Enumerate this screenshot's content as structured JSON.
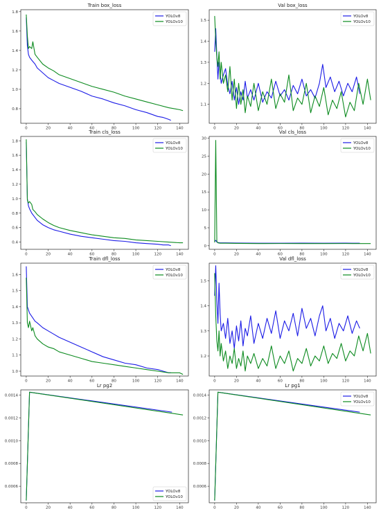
{
  "figure": {
    "rows": 4,
    "cols": 2
  },
  "colors": {
    "YOLOv8": "#1a1ae6",
    "YOLOv10": "#0b8a1e"
  },
  "chart_data": [
    {
      "type": "line",
      "title": "Train box_loss",
      "xlim": [
        -5,
        148
      ],
      "ylim": [
        0.65,
        1.82
      ],
      "xticks": [
        0,
        20,
        40,
        60,
        80,
        100,
        120,
        140
      ],
      "yticks": [
        0.8,
        1.0,
        1.2,
        1.4,
        1.6,
        1.8
      ],
      "ytick_labels": [
        "0.8",
        "1.0",
        "1.2",
        "1.4",
        "1.6",
        "1.8"
      ],
      "legend": "top-right",
      "series": [
        {
          "name": "YOLOv8",
          "x": [
            0,
            1,
            2,
            3,
            5,
            8,
            10,
            15,
            20,
            25,
            30,
            40,
            50,
            60,
            70,
            80,
            90,
            100,
            110,
            120,
            125,
            130,
            132
          ],
          "y": [
            1.74,
            1.45,
            1.36,
            1.33,
            1.3,
            1.26,
            1.22,
            1.17,
            1.12,
            1.09,
            1.06,
            1.02,
            0.98,
            0.93,
            0.9,
            0.86,
            0.83,
            0.79,
            0.76,
            0.72,
            0.71,
            0.69,
            0.68
          ]
        },
        {
          "name": "YOLOv10",
          "x": [
            0,
            1,
            2,
            3,
            5,
            6,
            8,
            10,
            15,
            20,
            25,
            30,
            40,
            50,
            60,
            70,
            80,
            90,
            100,
            110,
            120,
            130,
            140,
            143
          ],
          "y": [
            1.77,
            1.55,
            1.42,
            1.44,
            1.42,
            1.49,
            1.36,
            1.33,
            1.26,
            1.22,
            1.19,
            1.15,
            1.11,
            1.07,
            1.03,
            1.0,
            0.97,
            0.93,
            0.9,
            0.87,
            0.84,
            0.81,
            0.79,
            0.78
          ]
        }
      ]
    },
    {
      "type": "line",
      "title": "Val box_loss",
      "xlim": [
        -5,
        148
      ],
      "ylim": [
        1.01,
        1.55
      ],
      "xticks": [
        0,
        20,
        40,
        60,
        80,
        100,
        120,
        140
      ],
      "yticks": [
        1.1,
        1.2,
        1.3,
        1.4,
        1.5
      ],
      "ytick_labels": [
        "1.1",
        "1.2",
        "1.3",
        "1.4",
        "1.5"
      ],
      "legend": "top-right",
      "series": [
        {
          "name": "YOLOv8",
          "x": [
            0,
            1,
            2,
            3,
            4,
            5,
            6,
            8,
            10,
            12,
            14,
            16,
            18,
            20,
            22,
            24,
            26,
            28,
            30,
            33,
            36,
            40,
            44,
            48,
            52,
            56,
            60,
            64,
            68,
            72,
            76,
            80,
            84,
            88,
            92,
            96,
            99,
            102,
            106,
            110,
            114,
            118,
            122,
            126,
            130,
            133
          ],
          "y": [
            1.35,
            1.46,
            1.33,
            1.22,
            1.3,
            1.25,
            1.2,
            1.24,
            1.27,
            1.19,
            1.15,
            1.21,
            1.12,
            1.18,
            1.1,
            1.16,
            1.12,
            1.21,
            1.13,
            1.17,
            1.12,
            1.2,
            1.11,
            1.16,
            1.13,
            1.21,
            1.14,
            1.17,
            1.12,
            1.19,
            1.15,
            1.22,
            1.14,
            1.17,
            1.13,
            1.2,
            1.29,
            1.18,
            1.23,
            1.16,
            1.21,
            1.14,
            1.2,
            1.16,
            1.23,
            1.15
          ]
        },
        {
          "name": "YOLOv10",
          "x": [
            0,
            1,
            2,
            3,
            4,
            5,
            6,
            8,
            10,
            12,
            14,
            16,
            18,
            20,
            22,
            24,
            26,
            28,
            30,
            33,
            36,
            40,
            44,
            48,
            52,
            56,
            60,
            64,
            68,
            72,
            76,
            80,
            84,
            88,
            92,
            96,
            100,
            104,
            108,
            112,
            116,
            120,
            124,
            128,
            132,
            136,
            140,
            143
          ],
          "y": [
            1.52,
            1.4,
            1.32,
            1.28,
            1.35,
            1.22,
            1.3,
            1.2,
            1.24,
            1.16,
            1.28,
            1.12,
            1.22,
            1.08,
            1.2,
            1.1,
            1.17,
            1.06,
            1.14,
            1.09,
            1.2,
            1.07,
            1.16,
            1.1,
            1.22,
            1.08,
            1.15,
            1.11,
            1.24,
            1.07,
            1.13,
            1.1,
            1.2,
            1.06,
            1.14,
            1.09,
            1.18,
            1.05,
            1.12,
            1.08,
            1.16,
            1.04,
            1.11,
            1.07,
            1.2,
            1.1,
            1.22,
            1.12
          ]
        }
      ]
    },
    {
      "type": "line",
      "title": "Train cls_loss",
      "xlim": [
        -5,
        148
      ],
      "ylim": [
        0.3,
        1.86
      ],
      "xticks": [
        0,
        20,
        40,
        60,
        80,
        100,
        120,
        140
      ],
      "yticks": [
        0.4,
        0.6,
        0.8,
        1.0,
        1.2,
        1.4,
        1.6,
        1.8
      ],
      "ytick_labels": [
        "0.4",
        "0.6",
        "0.8",
        "1.0",
        "1.2",
        "1.4",
        "1.6",
        "1.8"
      ],
      "legend": "top-right",
      "series": [
        {
          "name": "YOLOv8",
          "x": [
            0,
            1,
            2,
            3,
            5,
            8,
            10,
            15,
            20,
            25,
            30,
            40,
            50,
            60,
            70,
            80,
            90,
            100,
            110,
            120,
            125,
            130,
            132
          ],
          "y": [
            1.78,
            1.0,
            0.9,
            0.86,
            0.8,
            0.74,
            0.7,
            0.64,
            0.6,
            0.57,
            0.55,
            0.51,
            0.48,
            0.46,
            0.44,
            0.42,
            0.41,
            0.39,
            0.38,
            0.37,
            0.36,
            0.36,
            0.35
          ]
        },
        {
          "name": "YOLOv10",
          "x": [
            0,
            1,
            2,
            3,
            5,
            6,
            8,
            10,
            15,
            20,
            25,
            30,
            40,
            50,
            60,
            70,
            80,
            90,
            100,
            110,
            120,
            130,
            140,
            143
          ],
          "y": [
            1.82,
            0.98,
            0.94,
            0.96,
            0.92,
            0.85,
            0.82,
            0.78,
            0.72,
            0.67,
            0.63,
            0.6,
            0.56,
            0.53,
            0.5,
            0.48,
            0.46,
            0.45,
            0.43,
            0.42,
            0.41,
            0.4,
            0.39,
            0.39
          ]
        }
      ]
    },
    {
      "type": "line",
      "title": "Val cls_loss",
      "xlim": [
        -5,
        148
      ],
      "ylim": [
        -1,
        30.5
      ],
      "xticks": [
        0,
        20,
        40,
        60,
        80,
        100,
        120,
        140
      ],
      "yticks": [
        0,
        5,
        10,
        15,
        20,
        25,
        30
      ],
      "ytick_labels": [
        "0",
        "5",
        "10",
        "15",
        "20",
        "25",
        "30"
      ],
      "legend": "top-right",
      "series": [
        {
          "name": "YOLOv8",
          "x": [
            0,
            1,
            2,
            3,
            5,
            10,
            20,
            40,
            60,
            80,
            100,
            120,
            133
          ],
          "y": [
            1.2,
            1.5,
            1.0,
            0.9,
            0.8,
            0.8,
            0.75,
            0.7,
            0.7,
            0.72,
            0.7,
            0.72,
            0.7
          ]
        },
        {
          "name": "YOLOv10",
          "x": [
            0,
            1,
            2,
            3,
            5,
            10,
            20,
            40,
            60,
            80,
            100,
            120,
            140,
            143
          ],
          "y": [
            0.9,
            29.4,
            1.2,
            0.8,
            0.7,
            0.7,
            0.65,
            0.6,
            0.62,
            0.6,
            0.6,
            0.62,
            0.6,
            0.6
          ]
        }
      ]
    },
    {
      "type": "line",
      "title": "Val dfl_loss",
      "xlim": [
        -5,
        148
      ],
      "ylim": [
        1.12,
        1.57
      ],
      "xticks": [
        0,
        20,
        40,
        60,
        80,
        100,
        120,
        140
      ],
      "yticks": [
        1.2,
        1.3,
        1.4,
        1.5
      ],
      "ytick_labels": [
        "1.2",
        "1.3",
        "1.4",
        "1.5"
      ],
      "legend": "top-right",
      "series": [
        {
          "name": "YOLOv8",
          "x": [
            0,
            1,
            2,
            3,
            4,
            5,
            6,
            8,
            10,
            12,
            14,
            16,
            18,
            20,
            22,
            24,
            26,
            28,
            30,
            33,
            36,
            40,
            44,
            48,
            52,
            56,
            60,
            64,
            68,
            72,
            76,
            80,
            84,
            88,
            92,
            96,
            99,
            102,
            106,
            110,
            114,
            118,
            122,
            126,
            130,
            133
          ],
          "y": [
            1.44,
            1.56,
            1.42,
            1.33,
            1.49,
            1.37,
            1.3,
            1.33,
            1.27,
            1.35,
            1.25,
            1.3,
            1.23,
            1.32,
            1.26,
            1.34,
            1.24,
            1.31,
            1.28,
            1.36,
            1.25,
            1.33,
            1.27,
            1.35,
            1.29,
            1.38,
            1.27,
            1.34,
            1.3,
            1.37,
            1.28,
            1.39,
            1.31,
            1.35,
            1.28,
            1.36,
            1.4,
            1.3,
            1.35,
            1.27,
            1.33,
            1.3,
            1.36,
            1.29,
            1.34,
            1.31
          ]
        },
        {
          "name": "YOLOv10",
          "x": [
            0,
            1,
            2,
            3,
            4,
            5,
            6,
            8,
            10,
            12,
            14,
            16,
            18,
            20,
            22,
            24,
            26,
            28,
            30,
            33,
            36,
            40,
            44,
            48,
            52,
            56,
            60,
            64,
            68,
            72,
            76,
            80,
            84,
            88,
            92,
            96,
            100,
            104,
            108,
            112,
            116,
            120,
            124,
            128,
            132,
            136,
            140,
            143
          ],
          "y": [
            1.53,
            1.36,
            1.26,
            1.22,
            1.3,
            1.2,
            1.25,
            1.18,
            1.22,
            1.15,
            1.2,
            1.17,
            1.23,
            1.15,
            1.19,
            1.16,
            1.22,
            1.14,
            1.2,
            1.17,
            1.21,
            1.15,
            1.19,
            1.16,
            1.24,
            1.15,
            1.2,
            1.17,
            1.22,
            1.14,
            1.19,
            1.17,
            1.23,
            1.16,
            1.2,
            1.18,
            1.24,
            1.17,
            1.21,
            1.19,
            1.25,
            1.18,
            1.22,
            1.2,
            1.28,
            1.22,
            1.29,
            1.21
          ]
        }
      ]
    },
    {
      "type": "line",
      "title": "Train dfl_loss",
      "xlim": [
        -5,
        148
      ],
      "ylim": [
        0.97,
        1.67
      ],
      "xticks": [
        0,
        20,
        40,
        60,
        80,
        100,
        120,
        140
      ],
      "yticks": [
        1.0,
        1.1,
        1.2,
        1.3,
        1.4,
        1.5,
        1.6
      ],
      "ytick_labels": [
        "1.0",
        "1.1",
        "1.2",
        "1.3",
        "1.4",
        "1.5",
        "1.6"
      ],
      "legend": "top-right",
      "series": [
        {
          "name": "YOLOv8",
          "x": [
            0,
            1,
            2,
            3,
            5,
            8,
            10,
            15,
            20,
            25,
            30,
            40,
            50,
            60,
            70,
            80,
            90,
            100,
            110,
            120,
            125,
            130,
            132
          ],
          "y": [
            1.65,
            1.4,
            1.38,
            1.36,
            1.34,
            1.31,
            1.3,
            1.27,
            1.25,
            1.23,
            1.21,
            1.18,
            1.15,
            1.12,
            1.09,
            1.07,
            1.05,
            1.04,
            1.02,
            1.01,
            1.0,
            0.99,
            0.99
          ]
        },
        {
          "name": "YOLOv10",
          "x": [
            0,
            1,
            2,
            3,
            5,
            6,
            8,
            10,
            15,
            20,
            25,
            30,
            40,
            50,
            60,
            70,
            80,
            90,
            100,
            110,
            120,
            130,
            140,
            143
          ],
          "y": [
            1.58,
            1.3,
            1.27,
            1.31,
            1.25,
            1.27,
            1.22,
            1.2,
            1.17,
            1.15,
            1.14,
            1.12,
            1.1,
            1.08,
            1.06,
            1.05,
            1.04,
            1.03,
            1.02,
            1.01,
            1.0,
            0.99,
            0.99,
            0.98
          ]
        }
      ]
    },
    {
      "type": "line",
      "title": "Lr pg2",
      "xlim": [
        -5,
        148
      ],
      "ylim": [
        0.000455,
        0.001445
      ],
      "xticks": [
        0,
        20,
        40,
        60,
        80,
        100,
        120,
        140
      ],
      "yticks": [
        0.0006,
        0.0008,
        0.001,
        0.0012,
        0.0014
      ],
      "ytick_labels": [
        "0.0006",
        "0.0008",
        "0.0010",
        "0.0012",
        "0.0014"
      ],
      "legend": "bottom-right",
      "series": [
        {
          "name": "YOLOv8",
          "x": [
            0,
            3,
            133
          ],
          "y": [
            0.000475,
            0.001425,
            0.00125
          ]
        },
        {
          "name": "YOLOv10",
          "x": [
            0,
            3,
            143
          ],
          "y": [
            0.000475,
            0.001425,
            0.001225
          ]
        }
      ]
    },
    {
      "type": "line",
      "title": "Lr pg1",
      "xlim": [
        -5,
        148
      ],
      "ylim": [
        0.000455,
        0.001445
      ],
      "xticks": [
        0,
        20,
        40,
        60,
        80,
        100,
        120,
        140
      ],
      "yticks": [
        0.0006,
        0.0008,
        0.001,
        0.0012,
        0.0014
      ],
      "ytick_labels": [
        "0.0006",
        "0.0008",
        "0.0010",
        "0.0012",
        "0.0014"
      ],
      "legend": "top-right",
      "series": [
        {
          "name": "YOLOv8",
          "x": [
            0,
            3,
            133
          ],
          "y": [
            0.000475,
            0.001425,
            0.00125
          ]
        },
        {
          "name": "YOLOv10",
          "x": [
            0,
            3,
            143
          ],
          "y": [
            0.000475,
            0.001425,
            0.001225
          ]
        }
      ]
    }
  ]
}
